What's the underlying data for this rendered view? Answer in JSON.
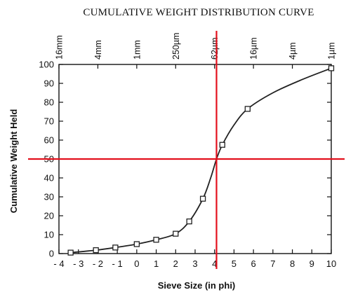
{
  "chart_data": {
    "type": "line",
    "title": "CUMULATIVE WEIGHT DISTRIBUTION CURVE",
    "xlabel": "Sieve Size (in phi)",
    "ylabel": "Cumulative Weight Held",
    "xlim": [
      -4,
      10
    ],
    "ylim": [
      0,
      100
    ],
    "x_ticks": [
      -4,
      -3,
      -2,
      -1,
      0,
      1,
      2,
      3,
      4,
      5,
      6,
      7,
      8,
      9,
      10
    ],
    "x_tick_labels": [
      "- 4",
      "- 3",
      "- 2",
      "- 1",
      "0",
      "1",
      "2",
      "3",
      "4",
      "5",
      "6",
      "7",
      "8",
      "9",
      "10"
    ],
    "y_ticks": [
      0,
      10,
      20,
      30,
      40,
      50,
      60,
      70,
      80,
      90,
      100
    ],
    "y_tick_labels": [
      "0",
      "10",
      "20",
      "30",
      "40",
      "50",
      "60",
      "70",
      "80",
      "90",
      "100"
    ],
    "top_axis_ticks": [
      {
        "x": -4,
        "label": "16mm"
      },
      {
        "x": -2,
        "label": "4mm"
      },
      {
        "x": 0,
        "label": "1mm"
      },
      {
        "x": 2,
        "label": "250µm"
      },
      {
        "x": 4,
        "label": "62µm"
      },
      {
        "x": 6,
        "label": "16µm"
      },
      {
        "x": 8,
        "label": "4µm"
      },
      {
        "x": 10,
        "label": "1µm"
      }
    ],
    "series": [
      {
        "marker": "open-square",
        "color": "#222222",
        "points": [
          {
            "x": -3.4,
            "y": 0.5
          },
          {
            "x": -2.1,
            "y": 1.8
          },
          {
            "x": -1.1,
            "y": 3.2
          },
          {
            "x": 0.0,
            "y": 5.0
          },
          {
            "x": 1.0,
            "y": 7.3
          },
          {
            "x": 2.0,
            "y": 10.5
          },
          {
            "x": 2.7,
            "y": 17.0
          },
          {
            "x": 3.4,
            "y": 29.0
          },
          {
            "x": 4.4,
            "y": 57.5
          },
          {
            "x": 5.7,
            "y": 76.5
          },
          {
            "x": 10.0,
            "y": 98.0
          }
        ],
        "curve": [
          [
            -3.4,
            0.5
          ],
          [
            -2.1,
            1.8
          ],
          [
            -1.1,
            3.2
          ],
          [
            0.0,
            5.0
          ],
          [
            1.0,
            7.3
          ],
          [
            2.0,
            10.5
          ],
          [
            2.7,
            17.0
          ],
          [
            3.4,
            29.0
          ],
          [
            3.8,
            40.0
          ],
          [
            4.1,
            50.0
          ],
          [
            4.4,
            57.5
          ],
          [
            5.0,
            68.0
          ],
          [
            5.7,
            76.5
          ],
          [
            7.0,
            85.0
          ],
          [
            8.5,
            92.0
          ],
          [
            10.0,
            98.0
          ]
        ]
      }
    ],
    "reference_lines": [
      {
        "orientation": "horizontal",
        "y": 50,
        "color": "#e3101c"
      },
      {
        "orientation": "vertical",
        "x": 4.1,
        "color": "#e3101c"
      }
    ],
    "grid": false
  }
}
